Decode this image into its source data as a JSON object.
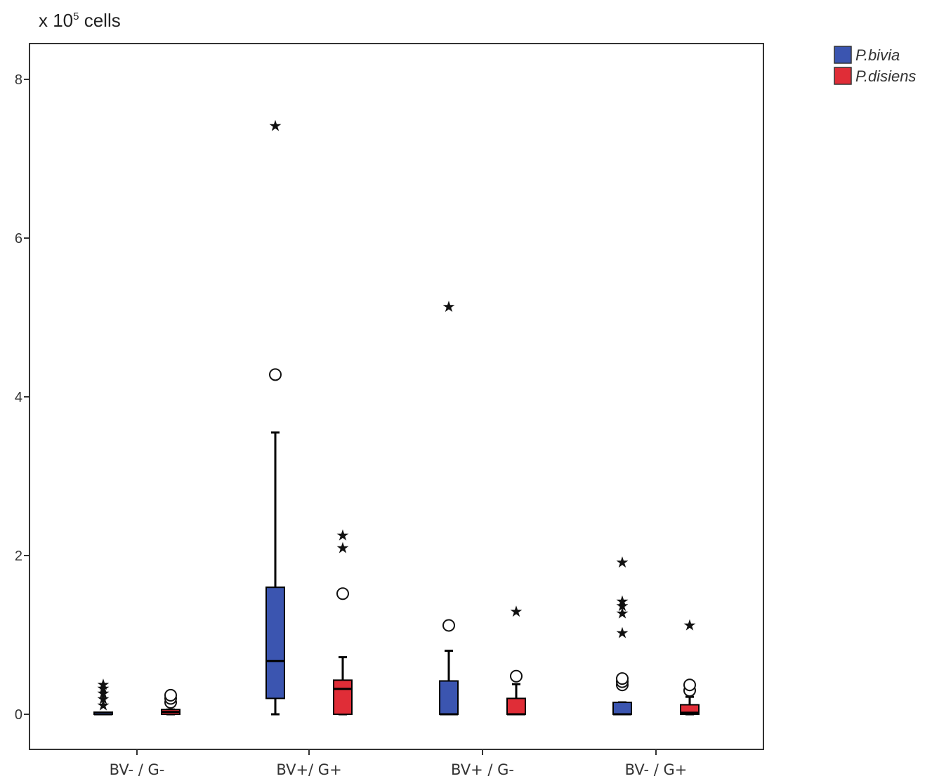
{
  "chart_data": {
    "type": "boxplot",
    "ylabel_prefix": "x 10",
    "ylabel_exponent": "5",
    "ylabel_suffix": " cells",
    "ylim": [
      -0.45,
      8.5
    ],
    "yticks": [
      0,
      2,
      4,
      6,
      8
    ],
    "categories": [
      "BV- / G-",
      "BV+/ G+",
      "BV+ / G-",
      "BV- / G+"
    ],
    "grid": false,
    "legend_position": "top-right",
    "series": [
      {
        "name": "P.bivia",
        "color": "#3b55b0",
        "boxes": [
          {
            "min": 0,
            "q1": 0,
            "median": 0,
            "q3": 0,
            "max": 0,
            "outliers_circle": [],
            "outliers_star": [
              0.12,
              0.2,
              0.27,
              0.33,
              0.38
            ]
          },
          {
            "min": 0,
            "q1": 0.2,
            "median": 0.67,
            "q3": 1.6,
            "max": 3.55,
            "outliers_circle": [
              4.28
            ],
            "outliers_star": [
              7.42
            ]
          },
          {
            "min": 0,
            "q1": 0,
            "median": 0,
            "q3": 0.42,
            "max": 0.8,
            "outliers_circle": [
              1.12
            ],
            "outliers_star": [
              5.14
            ]
          },
          {
            "min": 0,
            "q1": 0,
            "median": 0,
            "q3": 0.15,
            "max": 0.15,
            "outliers_circle": [
              0.37,
              0.41,
              0.45
            ],
            "outliers_star": [
              1.03,
              1.28,
              1.37,
              1.43,
              1.92
            ]
          }
        ]
      },
      {
        "name": "P.disiens",
        "color": "#e02d37",
        "boxes": [
          {
            "min": 0,
            "q1": 0,
            "median": 0.03,
            "q3": 0.06,
            "max": 0.06,
            "outliers_circle": [
              0.15,
              0.2,
              0.24
            ],
            "outliers_star": []
          },
          {
            "min": 0,
            "q1": 0,
            "median": 0.32,
            "q3": 0.43,
            "max": 0.72,
            "outliers_circle": [
              1.52
            ],
            "outliers_star": [
              2.1,
              2.26
            ]
          },
          {
            "min": 0,
            "q1": 0,
            "median": 0,
            "q3": 0.2,
            "max": 0.38,
            "outliers_circle": [
              0.48
            ],
            "outliers_star": [
              1.3
            ]
          },
          {
            "min": 0,
            "q1": 0,
            "median": 0.02,
            "q3": 0.12,
            "max": 0.22,
            "outliers_circle": [
              0.3,
              0.37
            ],
            "outliers_star": [
              1.13
            ]
          }
        ]
      }
    ]
  }
}
